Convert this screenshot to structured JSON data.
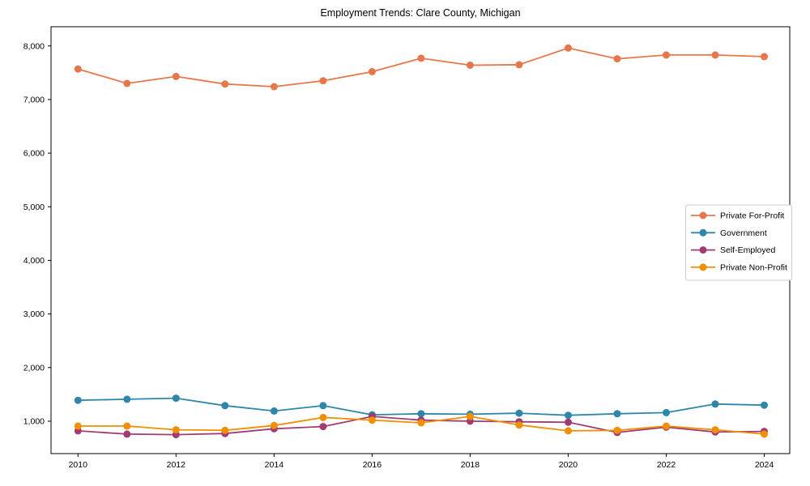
{
  "window": {
    "title": "Employment Trends: Clare County, Michigan"
  },
  "chart_data": {
    "type": "line",
    "title": "Employment Trends: Clare County, Michigan",
    "xlabel": "",
    "ylabel": "",
    "grid": false,
    "legend_position": "center right",
    "background_color": "#ffffff",
    "x": [
      2010,
      2011,
      2012,
      2013,
      2014,
      2015,
      2016,
      2017,
      2018,
      2019,
      2020,
      2021,
      2022,
      2023,
      2024
    ],
    "xticks": [
      2010,
      2012,
      2014,
      2016,
      2018,
      2020,
      2022,
      2024
    ],
    "ytick_values": [
      1000,
      2000,
      3000,
      4000,
      5000,
      6000,
      7000,
      8000
    ],
    "ytick_labels": [
      "1,000",
      "2,000",
      "3,000",
      "4,000",
      "5,000",
      "6,000",
      "7,000",
      "8,000"
    ],
    "xlim": [
      2009.45,
      2024.52
    ],
    "ylim": [
      396,
      8358
    ],
    "marker": "circle",
    "series": [
      {
        "name": "Private For-Profit",
        "color": "#E8764B",
        "values": [
          7570,
          7300,
          7430,
          7290,
          7240,
          7350,
          7520,
          7770,
          7640,
          7650,
          7960,
          7760,
          7830,
          7830,
          7800
        ]
      },
      {
        "name": "Government",
        "color": "#2E86AB",
        "values": [
          1390,
          1410,
          1430,
          1290,
          1190,
          1290,
          1120,
          1140,
          1130,
          1150,
          1110,
          1140,
          1160,
          1320,
          1300
        ]
      },
      {
        "name": "Self-Employed",
        "color": "#A23B72",
        "values": [
          820,
          760,
          750,
          770,
          860,
          900,
          1090,
          1020,
          1000,
          990,
          980,
          790,
          890,
          800,
          810
        ]
      },
      {
        "name": "Private Non-Profit",
        "color": "#F18F01",
        "values": [
          910,
          910,
          840,
          830,
          920,
          1070,
          1020,
          970,
          1090,
          930,
          820,
          830,
          910,
          840,
          760
        ]
      }
    ]
  }
}
